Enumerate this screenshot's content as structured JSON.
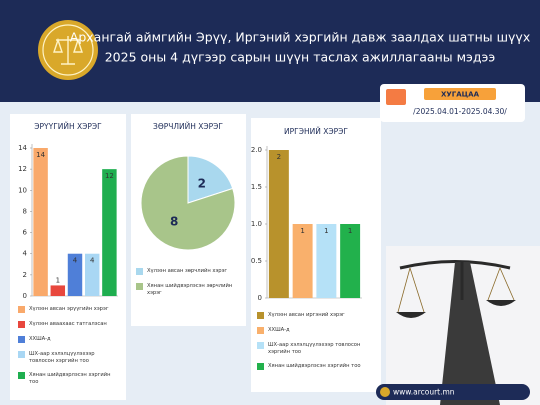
{
  "header": {
    "title": [
      "Архангай аймгийн Эрүү, Иргэний хэргийн давж заалдах шатны шүүх",
      "2025 оны 4 дүгээр сарын шүүн таслах ажиллагааны мэдээ"
    ]
  },
  "period": {
    "label": "ХУГАЦАА",
    "range": "/2025.04.01-2025.04.30/"
  },
  "footer": {
    "website": "www.arcourt.mn"
  },
  "chart_data": [
    {
      "type": "bar",
      "title": "ЭРҮҮГИЙН ХЭРЭГ",
      "ylim": [
        0,
        14
      ],
      "yticks": [
        0,
        2,
        4,
        6,
        8,
        10,
        12,
        14
      ],
      "series": [
        {
          "name": "Хүлээн авсан эрүүгийн хэрэг",
          "color": "#f9a96b",
          "values": [
            14
          ]
        },
        {
          "name": "Хүлээн аваахаас татгалзсан",
          "color": "#e8473d",
          "values": [
            1
          ]
        },
        {
          "name": "ХХШA-д",
          "color": "#4f7fd8",
          "values": [
            4
          ]
        },
        {
          "name": "ШХ-аар хэлэлцүүлэхээр товлосон хэргийн тоо",
          "color": "#a9d7f4",
          "values": [
            4
          ]
        },
        {
          "name": "Хянан шийдвэрлэсэн хэргийн тоо",
          "color": "#1fae4f",
          "values": [
            12
          ]
        }
      ]
    },
    {
      "type": "pie",
      "title": "ЗӨРЧЛИЙН ХЭРЭГ",
      "categories": [
        "Хүлээн авсан зөрчлийн хэрэг",
        "Хянан шийдвэрлэсэн зөрчлийн хэрэг"
      ],
      "values": [
        2,
        8
      ],
      "colors": [
        "#a9d8ee",
        "#a8c58a"
      ]
    },
    {
      "type": "bar",
      "title": "ИРГЭНИЙ ХЭРЭГ",
      "ylim": [
        0,
        2
      ],
      "yticks": [
        0,
        0.5,
        {
          "value": 1,
          "label": "1.0"
        },
        1.5,
        {
          "value": 2,
          "label": "2.0"
        }
      ],
      "series": [
        {
          "name": "Хүлээн авсан иргэний хэрэг",
          "color": "#b8922c",
          "values": [
            2
          ]
        },
        {
          "name": "ХХШA-д",
          "color": "#f9b06c",
          "values": [
            1
          ]
        },
        {
          "name": "ШХ-аар хэлэлцүүлэхээр товлосон хэргийн тоо",
          "color": "#b5e1f7",
          "values": [
            1
          ]
        },
        {
          "name": "Хянан шийдвэрлэсэн хэргийн тоо",
          "color": "#22b14c",
          "values": [
            1
          ]
        }
      ]
    }
  ]
}
